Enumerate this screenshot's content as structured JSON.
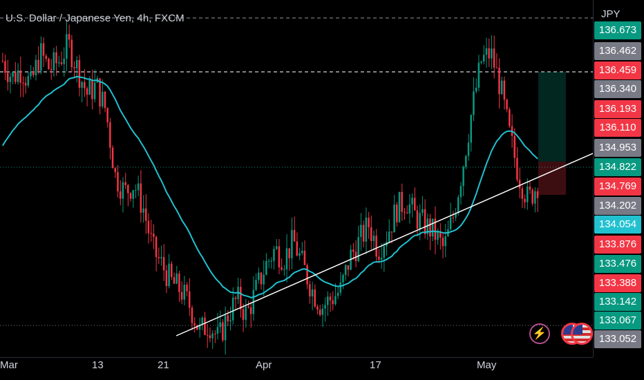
{
  "header": {
    "title": "U.S. Dollar / Japanese Yen, 4h, FXCM"
  },
  "axis": {
    "currency": "JPY"
  },
  "price_labels": [
    {
      "text": "136.673",
      "color": "#089981"
    },
    {
      "text": "136.462",
      "color": "#787b86"
    },
    {
      "text": "136.459",
      "color": "#f23645"
    },
    {
      "text": "136.340",
      "color": "#787b86"
    },
    {
      "text": "136.193",
      "color": "#f23645"
    },
    {
      "text": "136.110",
      "color": "#f23645"
    },
    {
      "text": "134.953",
      "color": "#787b86"
    },
    {
      "text": "134.822",
      "color": "#089981"
    },
    {
      "text": "134.769",
      "color": "#f23645"
    },
    {
      "text": "134.202",
      "color": "#787b86"
    },
    {
      "text": "134.054",
      "color": "#22c1d0"
    },
    {
      "text": "133.876",
      "color": "#f23645"
    },
    {
      "text": "133.476",
      "color": "#089981"
    },
    {
      "text": "133.388",
      "color": "#f23645"
    },
    {
      "text": "133.142",
      "color": "#089981"
    },
    {
      "text": "133.067",
      "color": "#089981"
    },
    {
      "text": "133.052",
      "color": "#787b86"
    }
  ],
  "x_ticks": [
    "Mar",
    "13",
    "21",
    "Apr",
    "17",
    "May"
  ],
  "icons": {
    "bolt": "lightning-icon",
    "flag1": "us-flag-icon",
    "flag2": "us-flag-icon"
  },
  "colors": {
    "up": "#089981",
    "down": "#f23645",
    "ma": "#22c1d0",
    "bg": "#000000"
  },
  "chart_data": {
    "type": "candlestick",
    "symbol": "U.S. Dollar / Japanese Yen",
    "interval": "4h",
    "source": "FXCM",
    "x_labels": [
      "Mar",
      "13",
      "21",
      "Apr",
      "17",
      "May"
    ],
    "ohlc_close_path": [
      136.3,
      136.1,
      136.2,
      136.0,
      136.4,
      136.2,
      136.3,
      136.5,
      136.2,
      135.9,
      136.0,
      135.7,
      134.9,
      134.7,
      134.8,
      134.5,
      134.0,
      133.8,
      133.6,
      133.5,
      133.3,
      133.0,
      133.1,
      132.9,
      133.2,
      133.4,
      133.2,
      133.5,
      133.8,
      134.0,
      133.9,
      134.1,
      133.8,
      133.5,
      133.3,
      133.4,
      133.5,
      133.9,
      134.1,
      134.3,
      134.0,
      134.2,
      134.5,
      134.6,
      134.4,
      134.3,
      134.2,
      134.0,
      134.4,
      135.0,
      135.7,
      136.3,
      136.4,
      136.0,
      135.4,
      134.9,
      134.6,
      134.8
    ],
    "moving_average_color": "#22c1d0"
  }
}
